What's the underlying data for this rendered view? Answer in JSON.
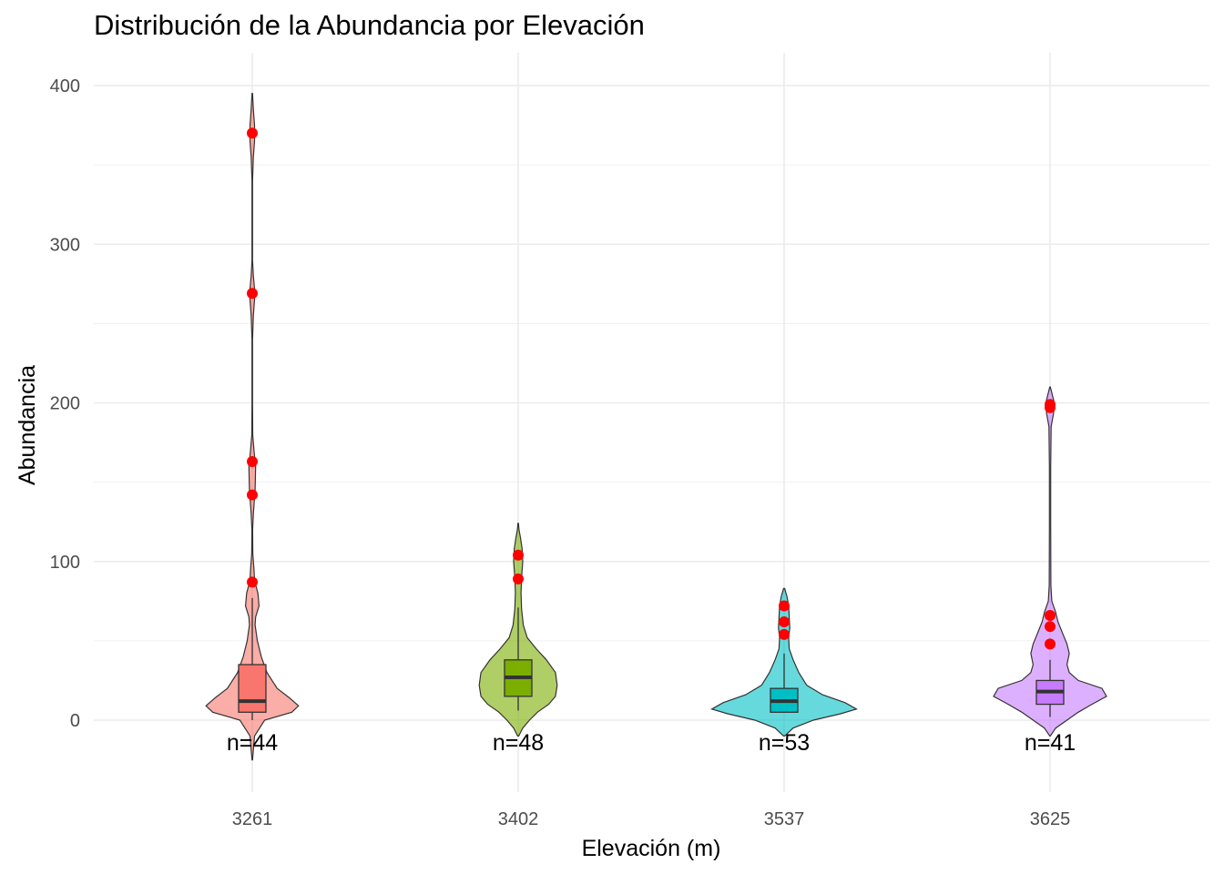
{
  "chart_data": {
    "type": "violin",
    "title": "Distribución de la Abundancia por Elevación",
    "xlabel": "Elevación (m)",
    "ylabel": "Abundancia",
    "ylim": [
      -45,
      415
    ],
    "yticks": [
      0,
      100,
      200,
      300,
      400
    ],
    "grid": true,
    "legend": "none",
    "categories": [
      "3261",
      "3402",
      "3537",
      "3625"
    ],
    "groups": [
      {
        "category": "3261",
        "n_label": "n=44",
        "violin_color": "#F8766D",
        "box": {
          "whisker_low": 0,
          "q1": 5,
          "median": 12,
          "q3": 35,
          "whisker_high": 77
        },
        "outliers": [
          87,
          142,
          163,
          269,
          370
        ],
        "density": [
          [
            -25,
            0.5
          ],
          [
            -10,
            4
          ],
          [
            0,
            22
          ],
          [
            5,
            70
          ],
          [
            9,
            82
          ],
          [
            14,
            66
          ],
          [
            20,
            44
          ],
          [
            30,
            26
          ],
          [
            40,
            16
          ],
          [
            50,
            9
          ],
          [
            60,
            5
          ],
          [
            65,
            6
          ],
          [
            72,
            12
          ],
          [
            80,
            10
          ],
          [
            88,
            4
          ],
          [
            95,
            3
          ],
          [
            105,
            1
          ],
          [
            120,
            0.7
          ],
          [
            130,
            2
          ],
          [
            145,
            5
          ],
          [
            160,
            6
          ],
          [
            170,
            3
          ],
          [
            180,
            0.8
          ],
          [
            200,
            0.5
          ],
          [
            240,
            0.5
          ],
          [
            255,
            2
          ],
          [
            265,
            4
          ],
          [
            272,
            4
          ],
          [
            280,
            2
          ],
          [
            290,
            0.5
          ],
          [
            340,
            0.5
          ],
          [
            355,
            2
          ],
          [
            365,
            4
          ],
          [
            375,
            4
          ],
          [
            385,
            2
          ],
          [
            395,
            0.5
          ]
        ]
      },
      {
        "category": "3402",
        "n_label": "n=48",
        "violin_color": "#7CAE00",
        "box": {
          "whisker_low": 6,
          "q1": 15,
          "median": 27,
          "q3": 38,
          "whisker_high": 71
        },
        "outliers": [
          89,
          104
        ],
        "density": [
          [
            -10,
            1
          ],
          [
            -5,
            8
          ],
          [
            0,
            20
          ],
          [
            5,
            34
          ],
          [
            10,
            54
          ],
          [
            15,
            66
          ],
          [
            22,
            69
          ],
          [
            30,
            66
          ],
          [
            38,
            50
          ],
          [
            45,
            32
          ],
          [
            52,
            16
          ],
          [
            60,
            9
          ],
          [
            70,
            6
          ],
          [
            80,
            5
          ],
          [
            90,
            6
          ],
          [
            100,
            8
          ],
          [
            108,
            7
          ],
          [
            115,
            4
          ],
          [
            120,
            1.5
          ],
          [
            124,
            0.5
          ]
        ]
      },
      {
        "category": "3537",
        "n_label": "n=53",
        "violin_color": "#00BFC4",
        "box": {
          "whisker_low": 5,
          "q1": 5,
          "median": 12,
          "q3": 20,
          "whisker_high": 42
        },
        "outliers": [
          54,
          62,
          72
        ],
        "density": [
          [
            -10,
            1
          ],
          [
            -5,
            16
          ],
          [
            0,
            52
          ],
          [
            4,
            100
          ],
          [
            7,
            128
          ],
          [
            11,
            108
          ],
          [
            16,
            68
          ],
          [
            22,
            40
          ],
          [
            30,
            26
          ],
          [
            38,
            16
          ],
          [
            45,
            9
          ],
          [
            52,
            8
          ],
          [
            58,
            10
          ],
          [
            65,
            9
          ],
          [
            72,
            8
          ],
          [
            78,
            5
          ],
          [
            83,
            1
          ]
        ]
      },
      {
        "category": "3625",
        "n_label": "n=41",
        "violin_color": "#C77CFF",
        "box": {
          "whisker_low": 2,
          "q1": 10,
          "median": 18,
          "q3": 25,
          "whisker_high": 38
        },
        "outliers": [
          48,
          59,
          66,
          197,
          199
        ],
        "density": [
          [
            -10,
            0.5
          ],
          [
            -5,
            10
          ],
          [
            0,
            30
          ],
          [
            5,
            50
          ],
          [
            10,
            74
          ],
          [
            15,
            100
          ],
          [
            20,
            92
          ],
          [
            25,
            50
          ],
          [
            30,
            34
          ],
          [
            35,
            30
          ],
          [
            42,
            34
          ],
          [
            48,
            30
          ],
          [
            55,
            22
          ],
          [
            62,
            14
          ],
          [
            68,
            10
          ],
          [
            75,
            3
          ],
          [
            85,
            1.5
          ],
          [
            120,
            1.2
          ],
          [
            160,
            1.2
          ],
          [
            185,
            2
          ],
          [
            193,
            6
          ],
          [
            199,
            8
          ],
          [
            205,
            4
          ],
          [
            210,
            0.5
          ]
        ]
      }
    ]
  }
}
